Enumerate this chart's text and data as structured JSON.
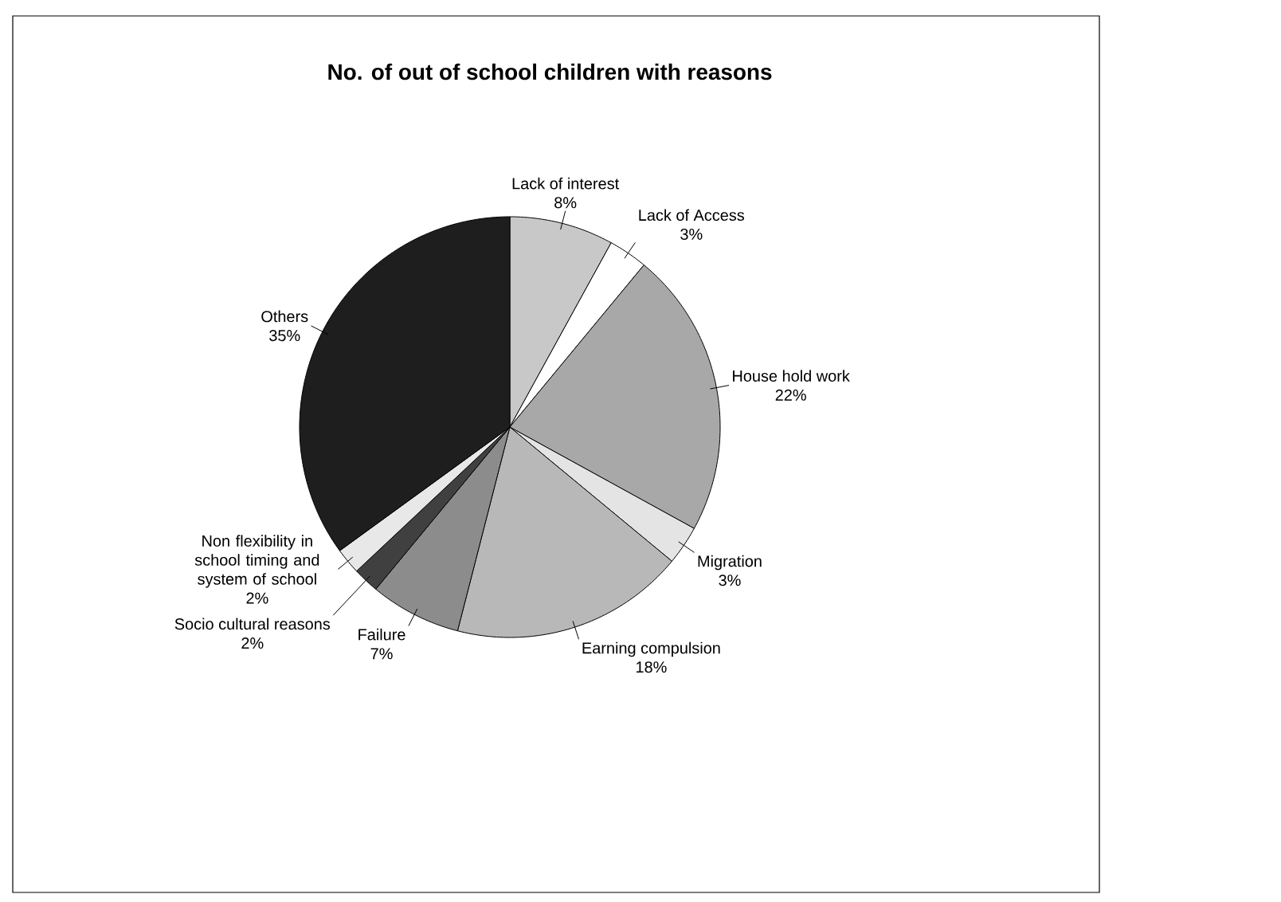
{
  "chart_data": {
    "type": "pie",
    "title": "No. of out of school children with reasons",
    "categories": [
      "Lack of interest",
      "Lack of Access",
      "House hold work",
      "Migration",
      "Earning compulsion",
      "Failure",
      "Socio cultural reasons",
      "Non flexibility in school timing and system of school",
      "Others"
    ],
    "values": [
      8,
      3,
      22,
      3,
      18,
      7,
      2,
      2,
      35
    ],
    "colors": [
      "#c8c8c8",
      "#ffffff",
      "#a8a8a8",
      "#e4e4e4",
      "#b8b8b8",
      "#8c8c8c",
      "#404040",
      "#e8e8e8",
      "#1e1e1e"
    ],
    "value_labels": [
      "8%",
      "3%",
      "22%",
      "3%",
      "18%",
      "7%",
      "2%",
      "2%",
      "35%"
    ]
  }
}
